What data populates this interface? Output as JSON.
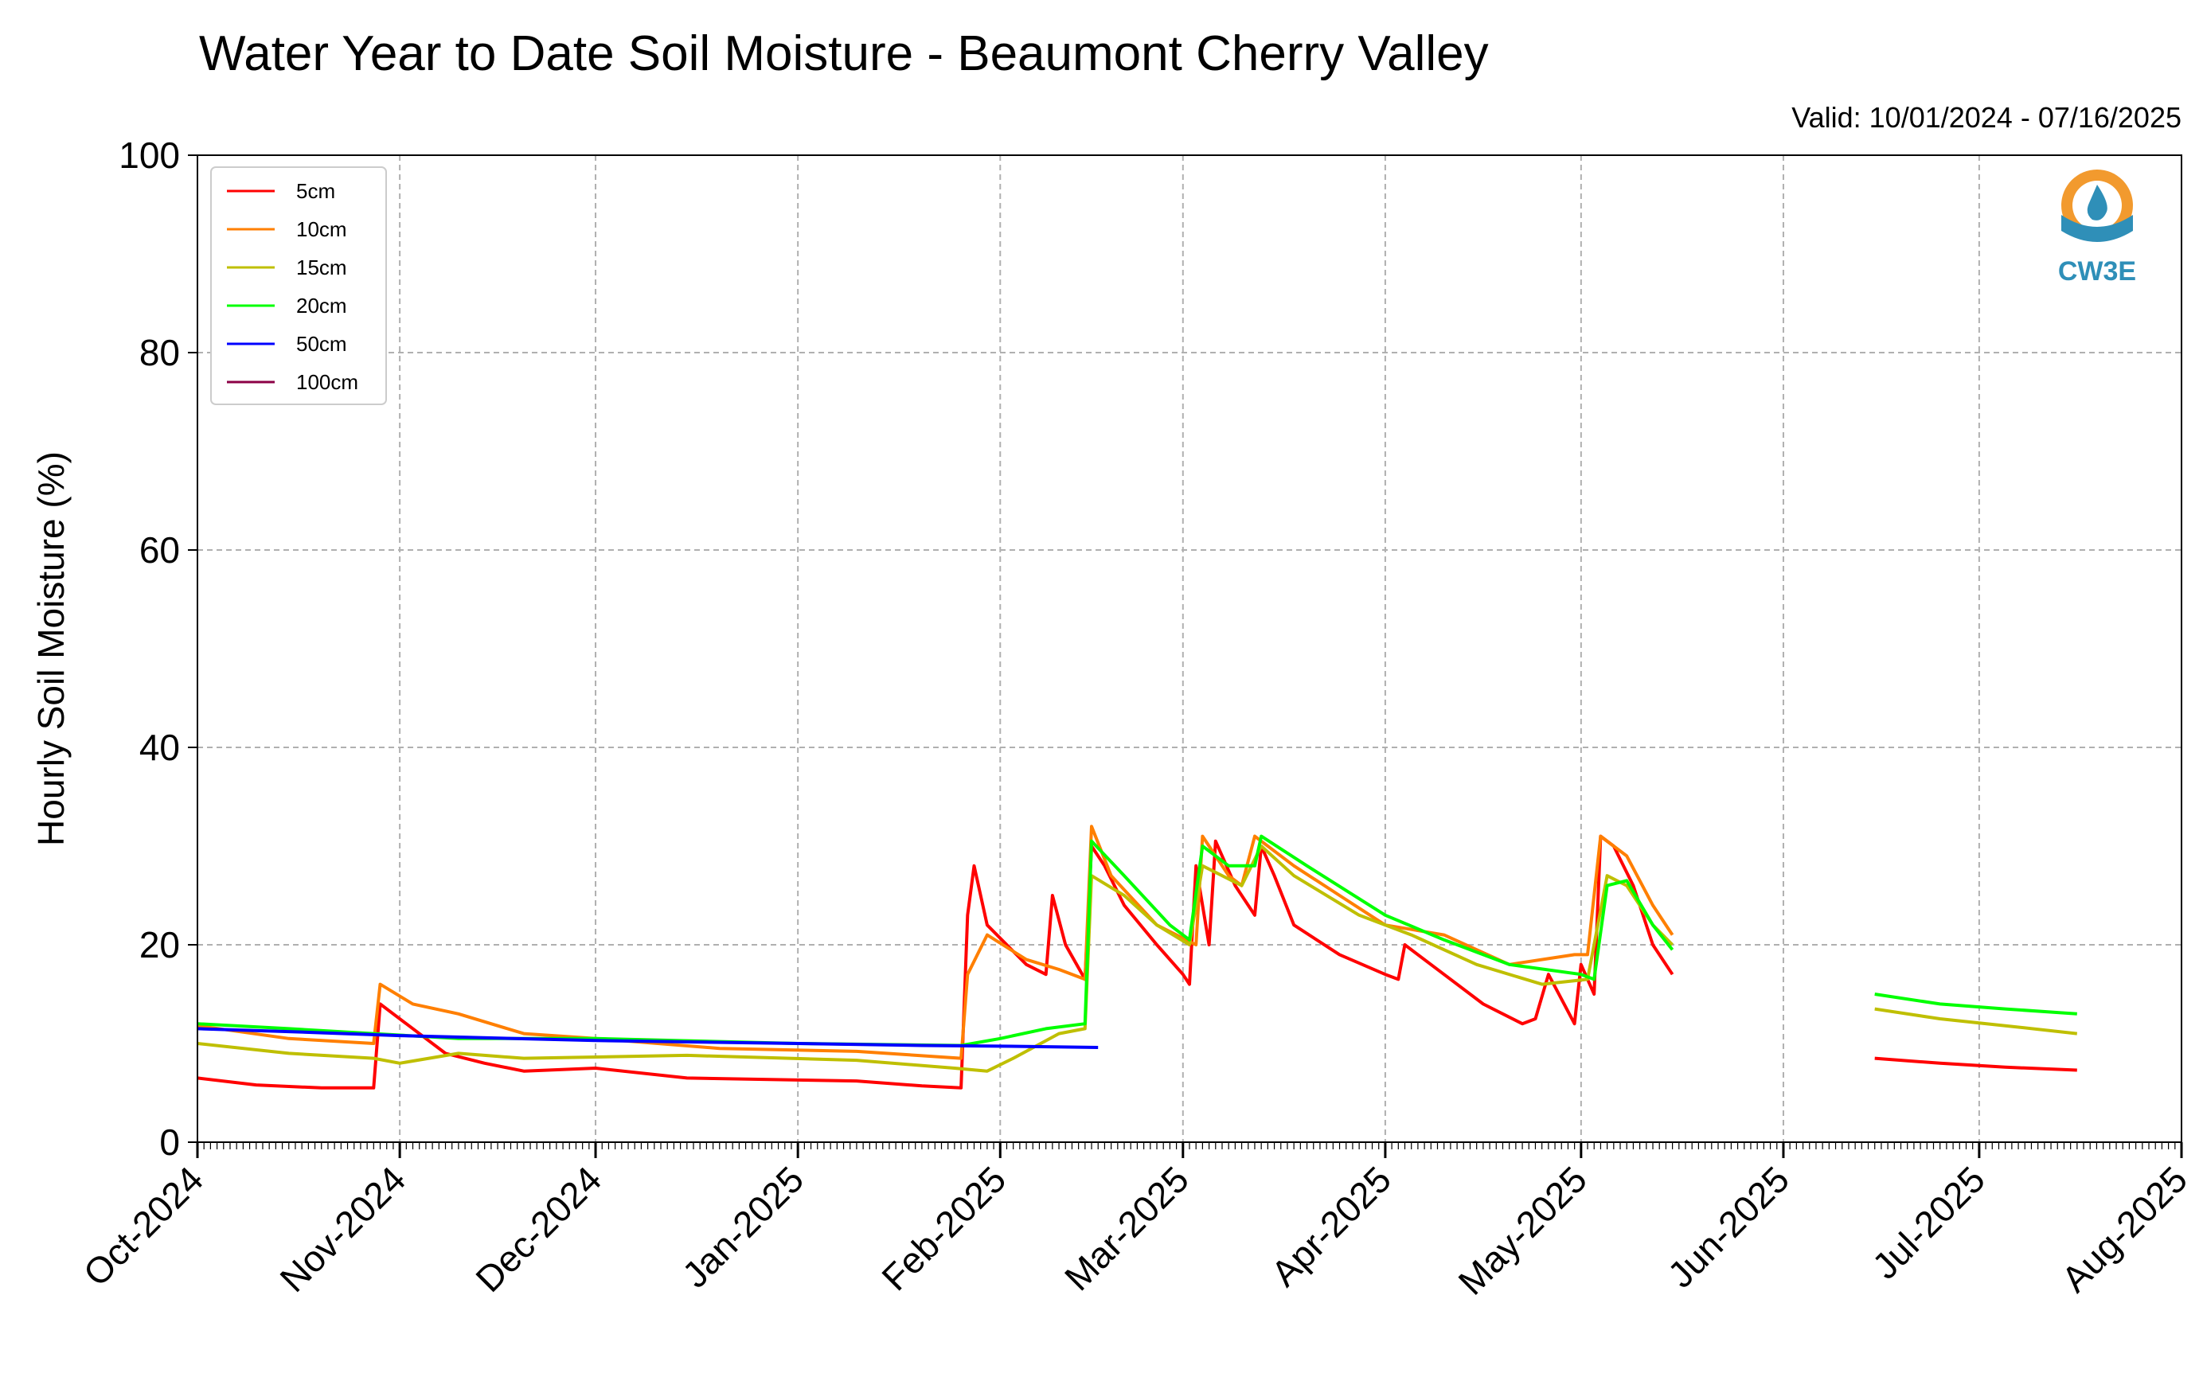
{
  "chart_data": {
    "type": "line",
    "title": "Water Year to Date Soil Moisture - Beaumont Cherry Valley",
    "subtitle": "Valid: 10/01/2024 - 07/16/2025",
    "ylabel": "Hourly Soil Moisture (%)",
    "xlabel": "",
    "ylim": [
      0,
      100
    ],
    "yticks": [
      0,
      20,
      40,
      60,
      80,
      100
    ],
    "xlim": [
      "2024-10-01",
      "2025-08-01"
    ],
    "xticks": [
      {
        "date": "2024-10-01",
        "label": "Oct-2024"
      },
      {
        "date": "2024-11-01",
        "label": "Nov-2024"
      },
      {
        "date": "2024-12-01",
        "label": "Dec-2024"
      },
      {
        "date": "2025-01-01",
        "label": "Jan-2025"
      },
      {
        "date": "2025-02-01",
        "label": "Feb-2025"
      },
      {
        "date": "2025-03-01",
        "label": "Mar-2025"
      },
      {
        "date": "2025-04-01",
        "label": "Apr-2025"
      },
      {
        "date": "2025-05-01",
        "label": "May-2025"
      },
      {
        "date": "2025-06-01",
        "label": "Jun-2025"
      },
      {
        "date": "2025-07-01",
        "label": "Jul-2025"
      },
      {
        "date": "2025-08-01",
        "label": "Aug-2025"
      }
    ],
    "grid": true,
    "legend_position": "top-left",
    "series": [
      {
        "name": "5cm",
        "color": "#ff0000",
        "segments": [
          [
            [
              "2024-10-01",
              6.5
            ],
            [
              "2024-10-10",
              5.8
            ],
            [
              "2024-10-20",
              5.5
            ],
            [
              "2024-10-28",
              5.5
            ],
            [
              "2024-10-29",
              14
            ],
            [
              "2024-11-02",
              12
            ],
            [
              "2024-11-08",
              9
            ],
            [
              "2024-11-14",
              8
            ],
            [
              "2024-11-20",
              7.2
            ],
            [
              "2024-12-01",
              7.5
            ],
            [
              "2024-12-15",
              6.5
            ],
            [
              "2025-01-01",
              6.3
            ],
            [
              "2025-01-10",
              6.2
            ],
            [
              "2025-01-20",
              5.7
            ],
            [
              "2025-01-26",
              5.5
            ],
            [
              "2025-01-27",
              23
            ],
            [
              "2025-01-28",
              28
            ],
            [
              "2025-01-30",
              22
            ],
            [
              "2025-02-05",
              18
            ],
            [
              "2025-02-08",
              17
            ],
            [
              "2025-02-09",
              25
            ],
            [
              "2025-02-11",
              20
            ],
            [
              "2025-02-14",
              16.5
            ],
            [
              "2025-02-15",
              30
            ],
            [
              "2025-02-17",
              28
            ],
            [
              "2025-02-20",
              24
            ],
            [
              "2025-02-25",
              20
            ],
            [
              "2025-03-01",
              17
            ],
            [
              "2025-03-02",
              16
            ],
            [
              "2025-03-03",
              28
            ],
            [
              "2025-03-05",
              20
            ],
            [
              "2025-03-06",
              30.5
            ],
            [
              "2025-03-09",
              26
            ],
            [
              "2025-03-12",
              23
            ],
            [
              "2025-03-13",
              30
            ],
            [
              "2025-03-15",
              27
            ],
            [
              "2025-03-18",
              22
            ],
            [
              "2025-03-25",
              19
            ],
            [
              "2025-04-01",
              17
            ],
            [
              "2025-04-03",
              16.5
            ],
            [
              "2025-04-04",
              20
            ],
            [
              "2025-04-10",
              17
            ],
            [
              "2025-04-16",
              14
            ],
            [
              "2025-04-22",
              12
            ],
            [
              "2025-04-24",
              12.5
            ],
            [
              "2025-04-26",
              17
            ],
            [
              "2025-04-30",
              12
            ],
            [
              "2025-05-01",
              18
            ],
            [
              "2025-05-03",
              15
            ],
            [
              "2025-05-04",
              31
            ],
            [
              "2025-05-06",
              30
            ],
            [
              "2025-05-09",
              26
            ],
            [
              "2025-05-12",
              20
            ],
            [
              "2025-05-15",
              17
            ]
          ],
          [
            [
              "2025-06-15",
              8.5
            ],
            [
              "2025-06-25",
              8
            ],
            [
              "2025-07-05",
              7.6
            ],
            [
              "2025-07-16",
              7.3
            ]
          ]
        ]
      },
      {
        "name": "10cm",
        "color": "#ff7f00",
        "segments": [
          [
            [
              "2024-10-01",
              11.8
            ],
            [
              "2024-10-15",
              10.5
            ],
            [
              "2024-10-28",
              10
            ],
            [
              "2024-10-29",
              16
            ],
            [
              "2024-11-03",
              14
            ],
            [
              "2024-11-10",
              13
            ],
            [
              "2024-11-20",
              11
            ],
            [
              "2024-12-01",
              10.5
            ],
            [
              "2024-12-20",
              9.5
            ],
            [
              "2025-01-10",
              9.2
            ],
            [
              "2025-01-26",
              8.5
            ],
            [
              "2025-01-27",
              17
            ],
            [
              "2025-01-30",
              21
            ],
            [
              "2025-02-05",
              18.5
            ],
            [
              "2025-02-10",
              17.5
            ],
            [
              "2025-02-14",
              16.5
            ],
            [
              "2025-02-15",
              32
            ],
            [
              "2025-02-18",
              27
            ],
            [
              "2025-02-25",
              22
            ],
            [
              "2025-03-03",
              20
            ],
            [
              "2025-03-04",
              31
            ],
            [
              "2025-03-08",
              27
            ],
            [
              "2025-03-10",
              26
            ],
            [
              "2025-03-12",
              31
            ],
            [
              "2025-03-18",
              28
            ],
            [
              "2025-03-25",
              25
            ],
            [
              "2025-04-01",
              22
            ],
            [
              "2025-04-10",
              21
            ],
            [
              "2025-04-20",
              18
            ],
            [
              "2025-04-30",
              19
            ],
            [
              "2025-05-02",
              19
            ],
            [
              "2025-05-04",
              31
            ],
            [
              "2025-05-08",
              29
            ],
            [
              "2025-05-12",
              24
            ],
            [
              "2025-05-15",
              21
            ]
          ]
        ]
      },
      {
        "name": "15cm",
        "color": "#bfbf00",
        "segments": [
          [
            [
              "2024-10-01",
              10
            ],
            [
              "2024-10-15",
              9
            ],
            [
              "2024-10-28",
              8.5
            ],
            [
              "2024-11-01",
              8
            ],
            [
              "2024-11-10",
              9
            ],
            [
              "2024-11-20",
              8.5
            ],
            [
              "2024-12-15",
              8.8
            ],
            [
              "2025-01-10",
              8.3
            ],
            [
              "2025-01-25",
              7.5
            ],
            [
              "2025-01-30",
              7.2
            ],
            [
              "2025-02-03",
              8.5
            ],
            [
              "2025-02-10",
              11
            ],
            [
              "2025-02-14",
              11.5
            ],
            [
              "2025-02-15",
              27
            ],
            [
              "2025-02-20",
              25
            ],
            [
              "2025-02-25",
              22
            ],
            [
              "2025-03-02",
              20
            ],
            [
              "2025-03-04",
              28
            ],
            [
              "2025-03-10",
              26
            ],
            [
              "2025-03-13",
              30
            ],
            [
              "2025-03-18",
              27
            ],
            [
              "2025-03-28",
              23
            ],
            [
              "2025-04-05",
              21
            ],
            [
              "2025-04-15",
              18
            ],
            [
              "2025-04-25",
              16
            ],
            [
              "2025-05-02",
              16.5
            ],
            [
              "2025-05-05",
              27
            ],
            [
              "2025-05-08",
              26
            ],
            [
              "2025-05-12",
              22
            ],
            [
              "2025-05-15",
              20
            ]
          ],
          [
            [
              "2025-06-15",
              13.5
            ],
            [
              "2025-06-25",
              12.5
            ],
            [
              "2025-07-05",
              11.8
            ],
            [
              "2025-07-16",
              11
            ]
          ]
        ]
      },
      {
        "name": "20cm",
        "color": "#00ff00",
        "segments": [
          [
            [
              "2024-10-01",
              12
            ],
            [
              "2024-10-15",
              11.5
            ],
            [
              "2024-10-28",
              11
            ],
            [
              "2024-11-10",
              10.5
            ],
            [
              "2024-12-01",
              10.5
            ],
            [
              "2025-01-01",
              10
            ],
            [
              "2025-01-26",
              9.8
            ],
            [
              "2025-02-01",
              10.5
            ],
            [
              "2025-02-08",
              11.5
            ],
            [
              "2025-02-14",
              12
            ],
            [
              "2025-02-15",
              30.5
            ],
            [
              "2025-02-20",
              27
            ],
            [
              "2025-02-27",
              22
            ],
            [
              "2025-03-02",
              20.5
            ],
            [
              "2025-03-04",
              30
            ],
            [
              "2025-03-08",
              28
            ],
            [
              "2025-03-12",
              28
            ],
            [
              "2025-03-13",
              31
            ],
            [
              "2025-03-20",
              28
            ],
            [
              "2025-04-01",
              23
            ],
            [
              "2025-04-10",
              20.5
            ],
            [
              "2025-04-20",
              18
            ],
            [
              "2025-05-01",
              17
            ],
            [
              "2025-05-03",
              16.5
            ],
            [
              "2025-05-05",
              26
            ],
            [
              "2025-05-08",
              26.5
            ],
            [
              "2025-05-12",
              22
            ],
            [
              "2025-05-15",
              19.5
            ]
          ],
          [
            [
              "2025-06-15",
              15
            ],
            [
              "2025-06-25",
              14
            ],
            [
              "2025-07-05",
              13.5
            ],
            [
              "2025-07-16",
              13
            ]
          ]
        ]
      },
      {
        "name": "50cm",
        "color": "#0000ff",
        "segments": [
          [
            [
              "2024-10-01",
              11.5
            ],
            [
              "2024-10-15",
              11.2
            ],
            [
              "2024-11-01",
              10.8
            ],
            [
              "2024-12-01",
              10.3
            ],
            [
              "2025-01-01",
              10
            ],
            [
              "2025-01-20",
              9.8
            ],
            [
              "2025-02-05",
              9.7
            ],
            [
              "2025-02-16",
              9.6
            ]
          ]
        ]
      },
      {
        "name": "100cm",
        "color": "#8b0045",
        "segments": []
      }
    ]
  },
  "logo": {
    "text": "CW3E"
  }
}
